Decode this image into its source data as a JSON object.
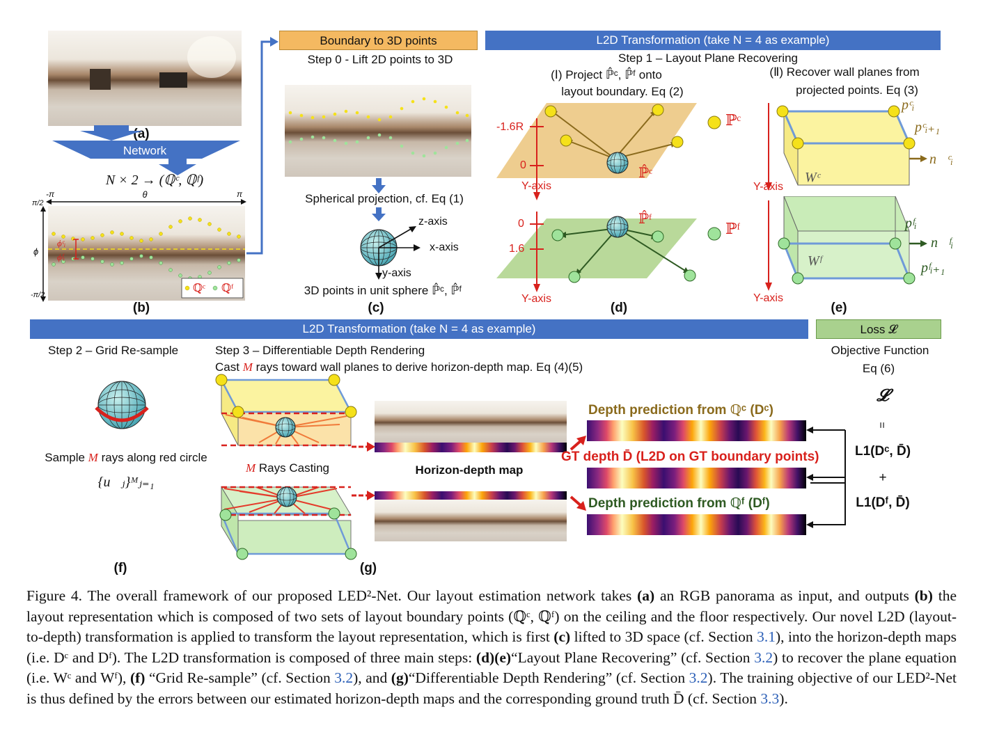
{
  "panel_labels": {
    "a": "(a)",
    "b": "(b)",
    "c": "(c)",
    "d": "(d)",
    "e": "(e)",
    "f": "(f)",
    "g": "(g)"
  },
  "network": {
    "label": "Network",
    "output": "N × 2 → (ℚᶜ, ℚᶠ)"
  },
  "panel_b": {
    "x_left": "-π",
    "x_center": "θ",
    "x_right": "π",
    "y_top": "π/2",
    "y_mid": "ϕ",
    "y_bottom": "-π/2",
    "phi_c": "ϕᶜᵢ",
    "phi_f": "ϕᶠᵢ",
    "legend_c": "ℚᶜ",
    "legend_f": "ℚᶠ"
  },
  "banners": {
    "boundary": "Boundary to 3D points",
    "l2d_top": "L2D Transformation (take N = 4 as example)",
    "l2d_bottom": "L2D Transformation (take N = 4 as example)",
    "loss": "Loss 𝓛"
  },
  "step0": {
    "title": "Step 0 - Lift 2D points to 3D",
    "projection": "Spherical projection, cf. Eq (1)",
    "z": "z-axis",
    "x": "x-axis",
    "y": "y-axis",
    "unit_sphere": "3D points in unit sphere ℙ̂ᶜ, ℙ̂ᶠ"
  },
  "step1": {
    "title": "Step 1 – Layout Plane Recovering",
    "i_line1": "(Ⅰ) Project ℙ̂ᶜ, ℙ̂ᶠ onto",
    "i_line2": "layout boundary. Eq (2)",
    "ii_line1": "(Ⅱ) Recover wall planes from",
    "ii_line2": "projected points. Eq (3)",
    "tick_neg16r": "-1.6R",
    "tick_0_top": "0",
    "tick_0_bot": "0",
    "tick_16": "1.6",
    "yaxis_1": "Y-axis",
    "yaxis_2": "Y-axis",
    "yaxis_3": "Y-axis",
    "yaxis_4": "Y-axis",
    "pc_legend": "ℙᶜ",
    "pf_legend": "ℙᶠ",
    "phat_c": "ℙ̂ᶜ",
    "phat_f": "ℙ̂ᶠ",
    "wc": "Wᶜ",
    "wf": "Wᶠ",
    "pic": "pᶜᵢ",
    "pic1": "pᶜᵢ₊₁",
    "nic": "n⃗ᶜᵢ",
    "pif": "pᶠᵢ",
    "pif1": "pᶠᵢ₊₁",
    "nif": "n⃗ᶠᵢ"
  },
  "step2": {
    "title": "Step 2 – Grid Re-sample",
    "sample_a": "Sample ",
    "sample_m": "M",
    "sample_b": " rays along red circle",
    "set": "{u⃗ⱼ}ᴹⱼ₌₁"
  },
  "step3": {
    "title": "Step 3 – Differentiable Depth Rendering",
    "cast_a": "Cast ",
    "cast_m": "M",
    "cast_b": " rays toward wall planes to derive horizon-depth map. Eq (4)(5)",
    "rays_m": "M",
    "rays": " Rays Casting",
    "hd_map": "Horizon-depth map"
  },
  "depth": {
    "pred_c": "Depth prediction from ℚᶜ (Dᶜ)",
    "gt": "GT depth D̄ (L2D on GT boundary points)",
    "pred_f": "Depth prediction from ℚᶠ (Dᶠ)"
  },
  "loss": {
    "objective": "Objective Function",
    "eq": "Eq (6)",
    "symbol": "𝓛",
    "equals": "=",
    "l1c": "L1(Dᶜ, D̄)",
    "plus": "+",
    "l1f": "L1(Dᶠ, D̄)"
  },
  "caption": {
    "s01": "Figure 4.   The overall framework of our proposed LED²-Net.  Our layout estimation network takes ",
    "s02": "(a)",
    "s03": " an RGB panorama as input, and outputs ",
    "s04": "(b)",
    "s05": " the layout representation which is composed of two sets of layout boundary points (ℚᶜ, ℚᶠ) on the ceiling and the floor respectively.  Our novel L2D (layout-to-depth) transformation is applied to transform the layout representation, which is first ",
    "s06": "(c)",
    "s07": " lifted to 3D space (cf.  Section ",
    "s08": "3.1",
    "s09": "), into the horizon-depth maps (i.e.  Dᶜ and Dᶠ).  The L2D transformation is composed of three main steps: ",
    "s10": "(d)(e)",
    "s11": "“Layout Plane Recovering” (cf. Section ",
    "s12": "3.2",
    "s13": ") to recover the plane equation (i.e. Wᶜ and Wᶠ), ",
    "s14": "(f)",
    "s15": " “Grid Re-sample” (cf. Section ",
    "s16": "3.2",
    "s17": "), and ",
    "s18": "(g)",
    "s19": "“Differentiable Depth Rendering” (cf.  Section ",
    "s20": "3.2",
    "s21": ").  The training objective of our LED²-Net is thus defined by the errors between our estimated horizon-depth maps and the corresponding ground truth D̄ (cf. Section ",
    "s22": "3.3",
    "s23": ")."
  },
  "colors": {
    "banner_blue": "#4472c4",
    "banner_orange": "#f4b961",
    "banner_green": "#a9d18e",
    "ceiling_point": "#f5e11a",
    "floor_point": "#9fe39b",
    "axis_red": "#d8211c",
    "arrow_blue": "#4472c4",
    "link_blue": "#2b5fb7"
  }
}
